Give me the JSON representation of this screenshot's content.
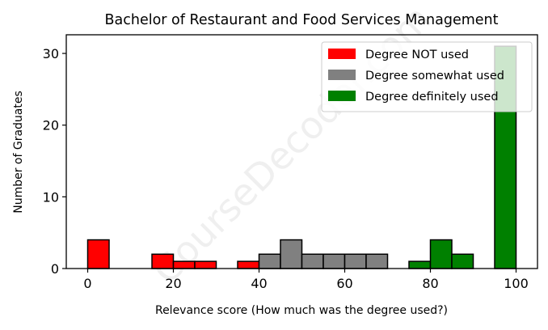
{
  "chart_data": {
    "type": "bar",
    "title": "Bachelor of Restaurant and Food Services Management",
    "xlabel": "Relevance score (How much was the degree used?)",
    "ylabel": "Number of Graduates",
    "xlim": [
      -5,
      105
    ],
    "ylim": [
      0,
      32.6
    ],
    "xticks": [
      0,
      20,
      40,
      60,
      80,
      100
    ],
    "yticks": [
      0,
      10,
      20,
      30
    ],
    "grid": false,
    "legend_position": "top-right",
    "watermark": "CourseDecoder.com",
    "bin_width": 5,
    "series": [
      {
        "name": "Degree NOT used",
        "color": "#ff0000",
        "bins": [
          {
            "x0": 0,
            "count": 4
          },
          {
            "x0": 15,
            "count": 2
          },
          {
            "x0": 20,
            "count": 1
          },
          {
            "x0": 25,
            "count": 1
          },
          {
            "x0": 35,
            "count": 1
          }
        ]
      },
      {
        "name": "Degree somewhat used",
        "color": "#808080",
        "bins": [
          {
            "x0": 40,
            "count": 2
          },
          {
            "x0": 45,
            "count": 4
          },
          {
            "x0": 50,
            "count": 2
          },
          {
            "x0": 55,
            "count": 2
          },
          {
            "x0": 60,
            "count": 2
          },
          {
            "x0": 65,
            "count": 2
          }
        ]
      },
      {
        "name": "Degree definitely used",
        "color": "#008000",
        "bins": [
          {
            "x0": 75,
            "count": 1
          },
          {
            "x0": 80,
            "count": 4
          },
          {
            "x0": 85,
            "count": 2
          },
          {
            "x0": 95,
            "count": 31
          }
        ]
      }
    ]
  }
}
